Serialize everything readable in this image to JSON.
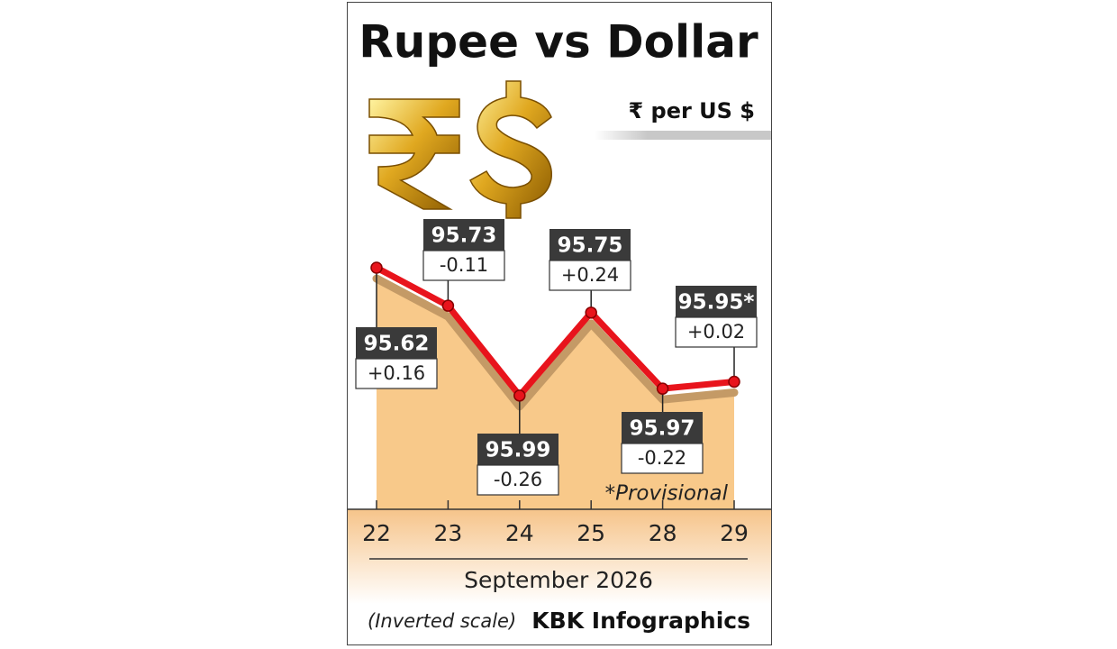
{
  "chart_data": {
    "type": "line",
    "title": "Rupee vs Dollar",
    "unit": "₹ per US $",
    "categories": [
      "22",
      "23",
      "24",
      "25",
      "28",
      "29"
    ],
    "values": [
      95.62,
      95.73,
      95.99,
      95.75,
      95.97,
      95.95
    ],
    "value_labels": [
      "95.62",
      "95.73",
      "95.99",
      "95.75",
      "95.97",
      "95.95*"
    ],
    "changes": [
      "+0.16",
      "-0.11",
      "-0.26",
      "+0.24",
      "-0.22",
      "+0.02"
    ],
    "color": "#e8141c",
    "ylim": [
      95.5,
      96.1
    ],
    "inverted": true,
    "note": "*Provisional",
    "xlabel": "September 2026",
    "scale_note": "(Inverted scale)",
    "credit": "KBK Infographics"
  }
}
